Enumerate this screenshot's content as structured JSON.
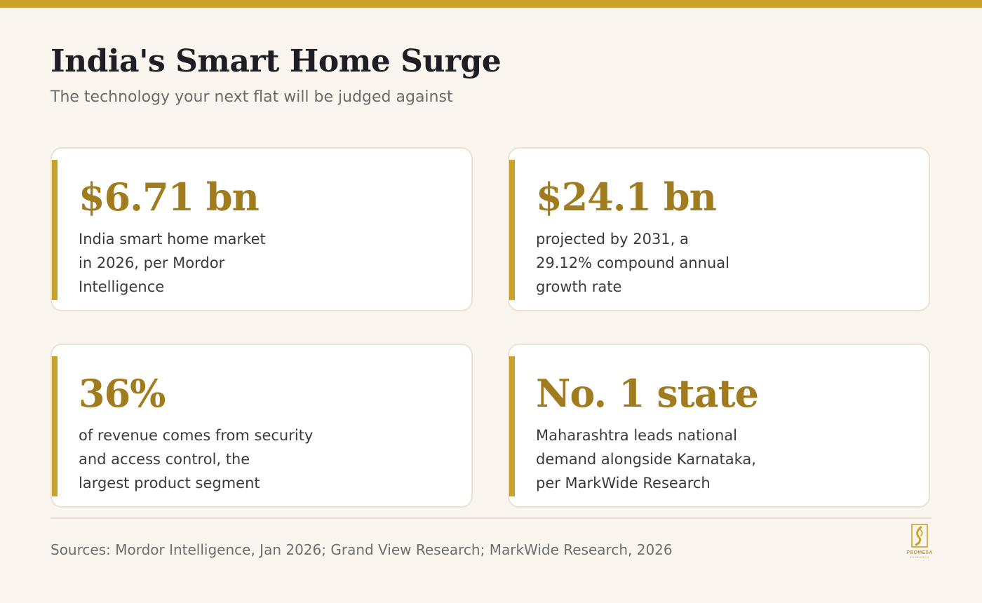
{
  "header": {
    "title": "India's Smart Home Surge",
    "subtitle": "The technology your next flat will be judged against"
  },
  "cards": [
    {
      "stat": "$6.71 bn",
      "description_lines": [
        "India smart home market",
        "in 2026, per Mordor",
        "Intelligence"
      ]
    },
    {
      "stat": "$24.1 bn",
      "description_lines": [
        "projected by 2031, a",
        "29.12% compound annual",
        "growth rate"
      ]
    },
    {
      "stat": "36%",
      "description_lines": [
        "of revenue comes from security",
        "and access control, the",
        "largest product segment"
      ]
    },
    {
      "stat": "No. 1 state",
      "description_lines": [
        "Maharashtra leads national",
        "demand alongside Karnataka,",
        "per MarkWide Research"
      ]
    }
  ],
  "footer": {
    "sources": "Sources: Mordor Intelligence, Jan 2026; Grand View Research; MarkWide Research, 2026",
    "logo": {
      "icon": "promesa-logo-icon",
      "name": "PROMESA",
      "tagline": "RESEARCH"
    }
  },
  "colors": {
    "accent": "#c9a22c",
    "stat_text": "#a07c1e",
    "background": "#faf6ef",
    "card_border": "#ece2cf",
    "title_text": "#1e1f24"
  }
}
